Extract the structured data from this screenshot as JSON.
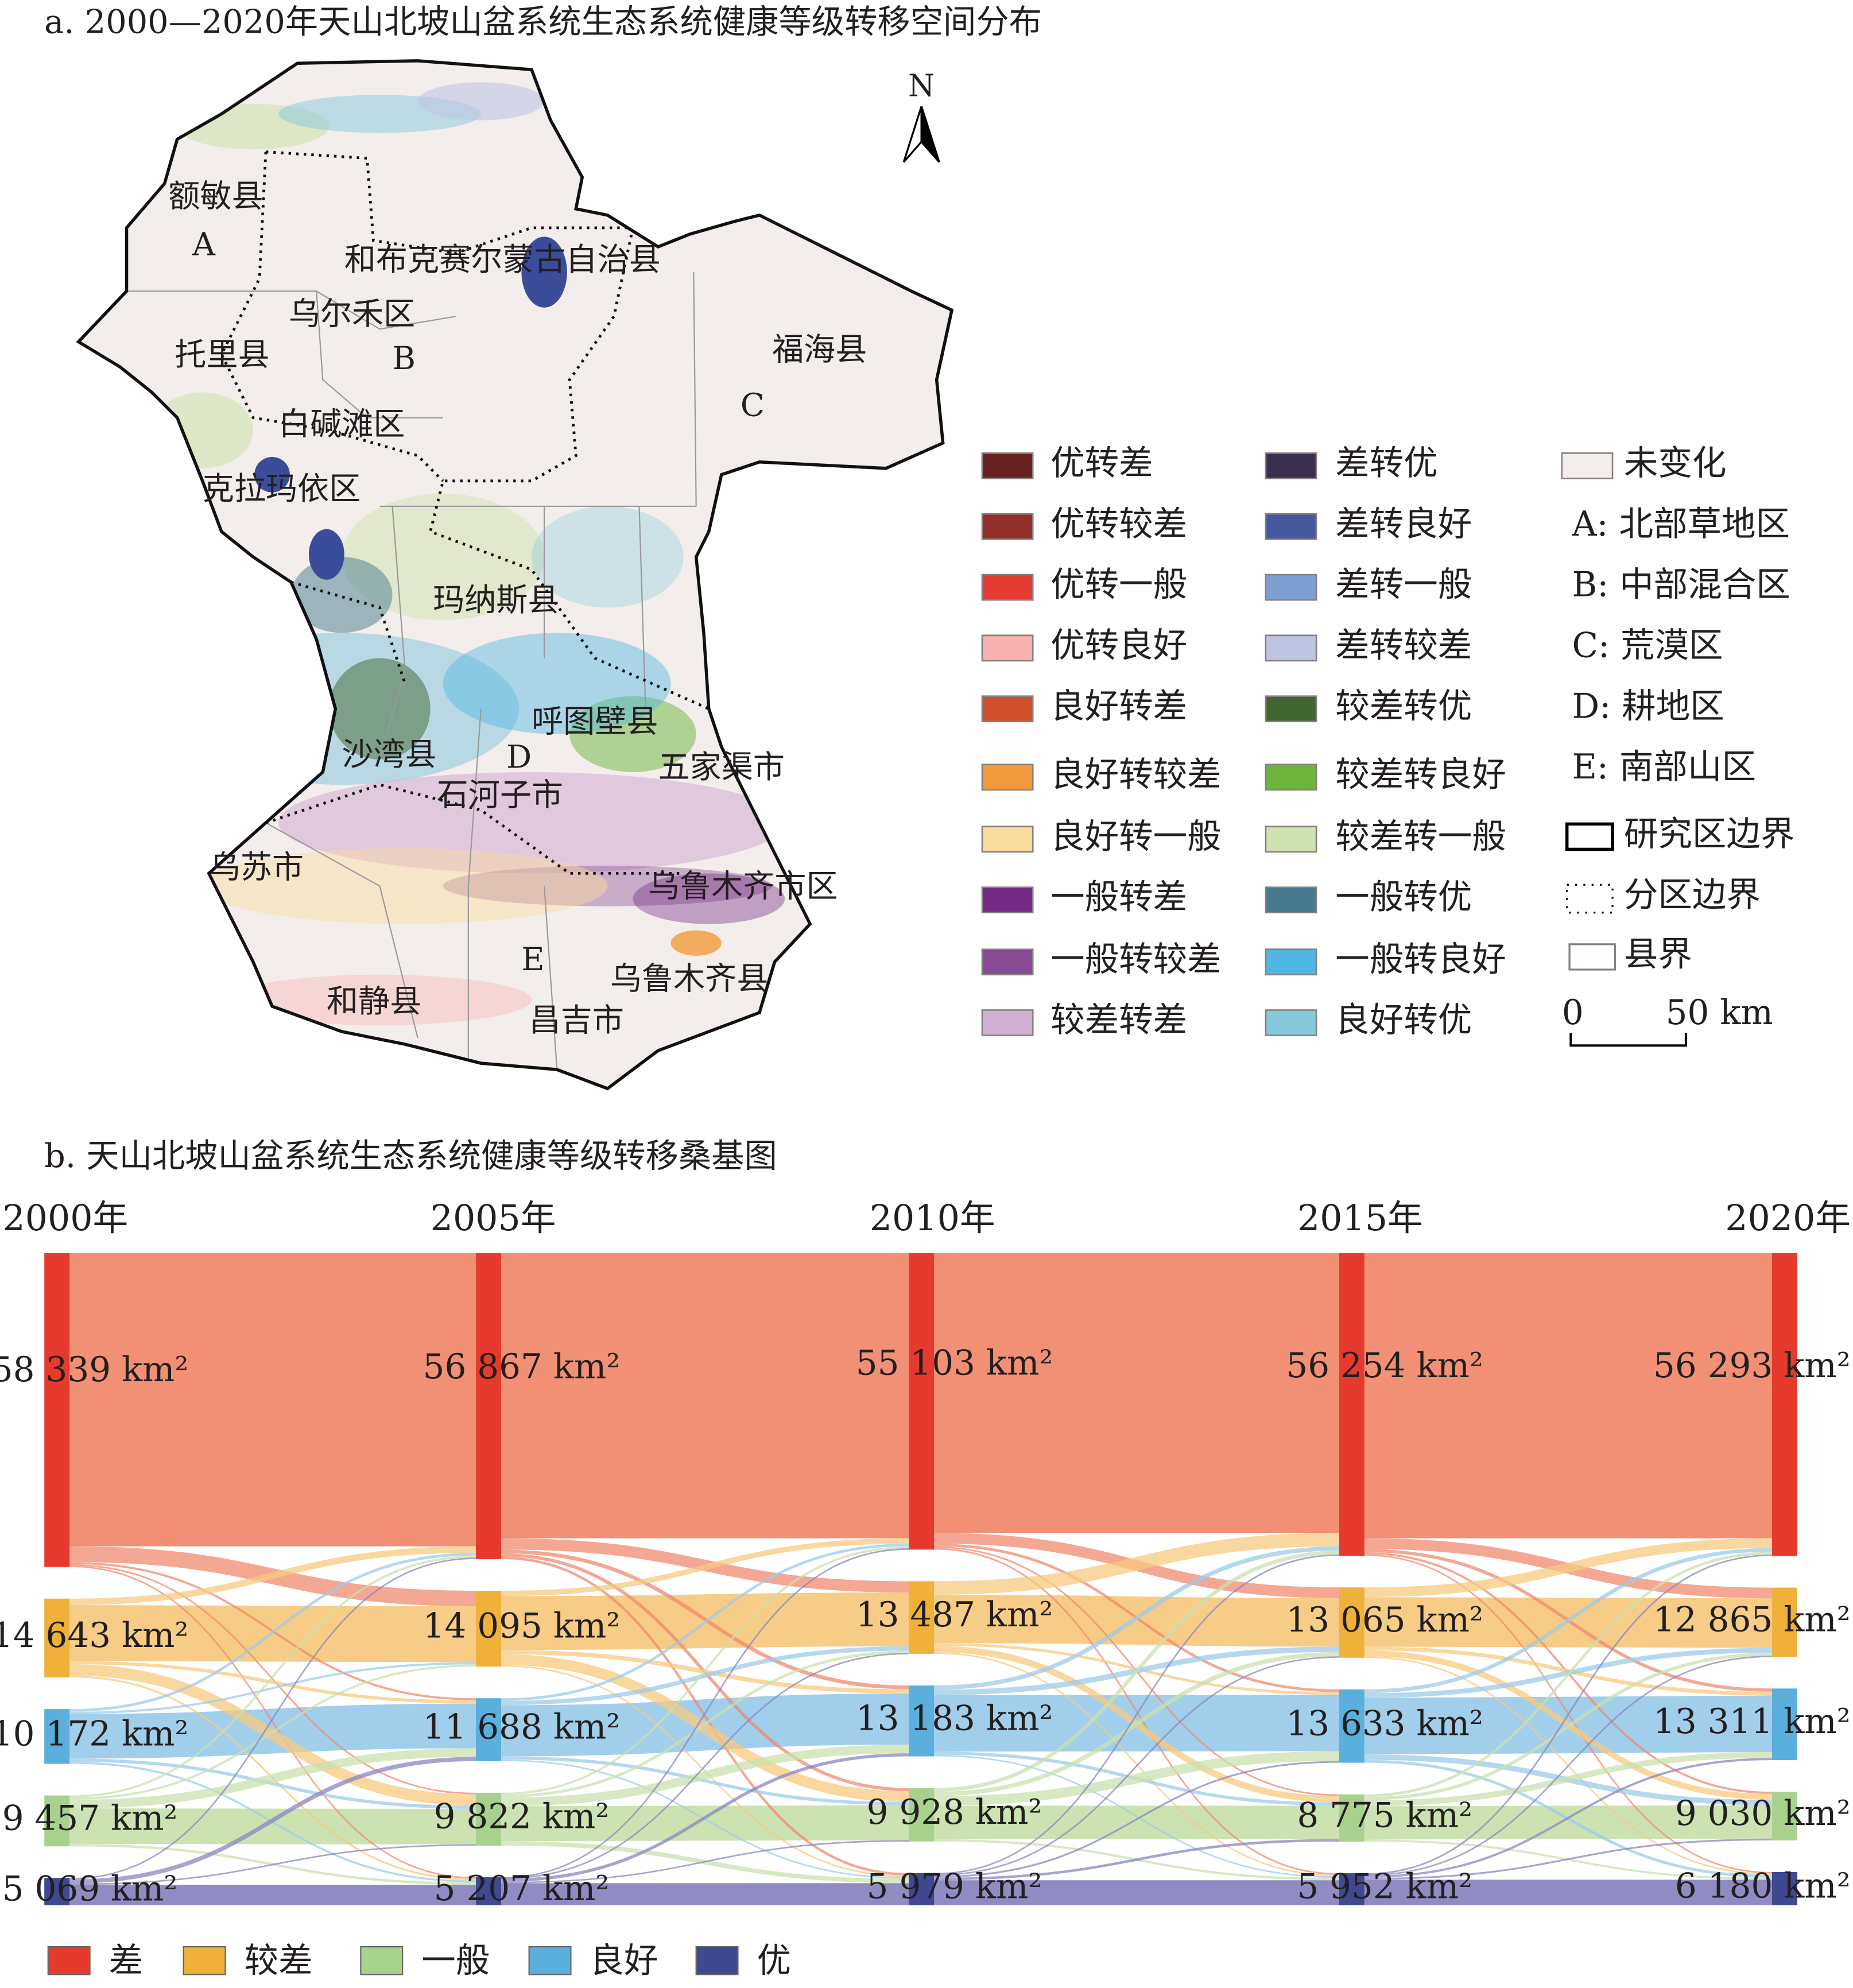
{
  "panel_a": {
    "title": "a. 2000—2020年天山北坡山盆系统生态系统健康等级转移空间分布",
    "north": "N",
    "places": [
      "额敏县",
      "A",
      "和布克赛尔蒙古自治县",
      "乌尔禾区",
      "托里县",
      "B",
      "福海县",
      "C",
      "白碱滩区",
      "克拉玛依区",
      "玛纳斯县",
      "呼图壁县",
      "沙湾县",
      "D",
      "五家渠市",
      "石河子市",
      "乌苏市",
      "乌鲁木齐市区",
      "E",
      "乌鲁木齐县",
      "和静县",
      "昌吉市"
    ],
    "legend_col1": [
      {
        "label": "优转差",
        "color": "#662222"
      },
      {
        "label": "优转较差",
        "color": "#922d2a"
      },
      {
        "label": "优转一般",
        "color": "#e53b32"
      },
      {
        "label": "优转良好",
        "color": "#f8b1b1"
      },
      {
        "label": "良好转差",
        "color": "#d24f2c"
      },
      {
        "label": "良好转较差",
        "color": "#f29a3b"
      },
      {
        "label": "良好转一般",
        "color": "#fadb9e"
      },
      {
        "label": "一般转差",
        "color": "#742a84"
      },
      {
        "label": "一般转较差",
        "color": "#874b94"
      },
      {
        "label": "较差转差",
        "color": "#d3b0d3"
      }
    ],
    "legend_col2": [
      {
        "label": "差转优",
        "color": "#3a2f4f"
      },
      {
        "label": "差转良好",
        "color": "#4558a0"
      },
      {
        "label": "差转一般",
        "color": "#7d9fd1"
      },
      {
        "label": "差转较差",
        "color": "#c0c4e3"
      },
      {
        "label": "较差转优",
        "color": "#41662f"
      },
      {
        "label": "较差转良好",
        "color": "#6db43e"
      },
      {
        "label": "较差转一般",
        "color": "#cfe2b0"
      },
      {
        "label": "一般转优",
        "color": "#477a8e"
      },
      {
        "label": "一般转良好",
        "color": "#50b6e2"
      },
      {
        "label": "良好转优",
        "color": "#86c8dc"
      }
    ],
    "legend_col3": {
      "unchanged": {
        "label": "未变化",
        "color": "#f3eeeb"
      },
      "zones": [
        "A: 北部草地区",
        "B: 中部混合区",
        "C: 荒漠区",
        "D: 耕地区",
        "E: 南部山区"
      ],
      "study_boundary": "研究区边界",
      "zone_boundary": "分区边界",
      "county_boundary": "县界",
      "scale_0": "0",
      "scale_50": "50 km"
    }
  },
  "panel_b": {
    "title": "b. 天山北坡山盆系统生态系统健康等级转移桑基图"
  },
  "chart_data": {
    "type": "sankey",
    "title": "b. 天山北坡山盆系统生态系统健康等级转移桑基图",
    "unit": "km²",
    "years": [
      "2000年",
      "2005年",
      "2010年",
      "2015年",
      "2020年"
    ],
    "node_order": [
      "差",
      "较差",
      "良好",
      "一般",
      "优"
    ],
    "node_colors": {
      "差": "#e63a2e",
      "较差": "#f0b13a",
      "良好": "#5aafdc",
      "一般": "#a9d18e",
      "优": "#3f4891"
    },
    "link_colors": {
      "差": "#f08a6e",
      "较差": "#f7c97f",
      "良好": "#9ccbe9",
      "一般": "#c9e0ad",
      "优": "#8a86c0"
    },
    "node_values": [
      [
        58339,
        14643,
        10172,
        9457,
        5069
      ],
      [
        56867,
        14095,
        11688,
        9822,
        5207
      ],
      [
        55103,
        13487,
        13183,
        9928,
        5979
      ],
      [
        56254,
        13065,
        13633,
        8775,
        5952
      ],
      [
        56293,
        12865,
        13311,
        9030,
        6180
      ]
    ],
    "node_labels": [
      [
        "58 339 km²",
        "14 643 km²",
        "10 172 km²",
        "9 457 km²",
        "5 069 km²"
      ],
      [
        "56 867 km²",
        "14 095 km²",
        "11 688 km²",
        "9 822 km²",
        "5 207 km²"
      ],
      [
        "55 103 km²",
        "13 487 km²",
        "13 183 km²",
        "9 928 km²",
        "5 979 km²"
      ],
      [
        "56 254 km²",
        "13 065 km²",
        "13 633 km²",
        "8 775 km²",
        "5 952 km²"
      ],
      [
        "56 293 km²",
        "12 865 km²",
        "13 311 km²",
        "9 030 km²",
        "6 180 km²"
      ]
    ],
    "links_estimated": [
      [
        [
          54500,
          2900,
          400,
          300,
          239
        ],
        [
          1200,
          10400,
          600,
          2100,
          343
        ],
        [
          500,
          400,
          8300,
          600,
          372
        ],
        [
          400,
          400,
          1600,
          6600,
          457
        ],
        [
          267,
          0,
          788,
          218,
          3796
        ]
      ],
      [
        [
          53000,
          2100,
          700,
          600,
          467
        ],
        [
          1000,
          10000,
          800,
          2000,
          295
        ],
        [
          500,
          800,
          9500,
          600,
          288
        ],
        [
          400,
          500,
          1600,
          6500,
          822
        ],
        [
          203,
          87,
          583,
          228,
          4106
        ]
      ],
      [
        [
          52000,
          2000,
          500,
          300,
          303
        ],
        [
          2500,
          9000,
          500,
          1200,
          287
        ],
        [
          800,
          1000,
          10500,
          600,
          283
        ],
        [
          700,
          800,
          1800,
          6200,
          428
        ],
        [
          254,
          265,
          333,
          475,
          4652
        ]
      ],
      [
        [
          53000,
          2000,
          600,
          400,
          254
        ],
        [
          1800,
          9200,
          700,
          1100,
          265
        ],
        [
          700,
          900,
          10500,
          1000,
          533
        ],
        [
          500,
          600,
          1100,
          6200,
          375
        ],
        [
          293,
          165,
          411,
          330,
          4753
        ]
      ]
    ],
    "legend": [
      "差",
      "较差",
      "一般",
      "良好",
      "优"
    ],
    "legend_position": "bottom"
  }
}
